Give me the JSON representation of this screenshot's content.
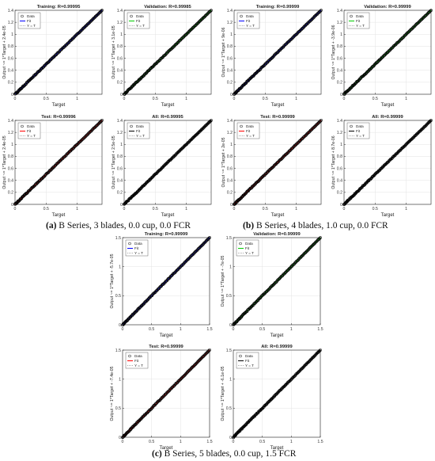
{
  "legend_labels": {
    "data": "Data",
    "fit": "Fit",
    "yt": "Y = T"
  },
  "xlabel": "Target",
  "colors": {
    "training": "#0000ff",
    "validation": "#00cc00",
    "test": "#ff0000",
    "all": "#000000",
    "axes": "#262626",
    "markers": "#000000"
  },
  "captions": [
    {
      "letter": "(a)",
      "text": " B Series, 3 blades, 0.0 cup, 0.0 FCR"
    },
    {
      "letter": "(b)",
      "text": " B Series, 4 blades, 1.0 cup, 0.0 FCR"
    },
    {
      "letter": "(c)",
      "text": " B Series, 5 blades, 0.0 cup, 1.5 FCR"
    }
  ],
  "chart_data": [
    {
      "type": "scatter",
      "group": "a",
      "subset": "training",
      "title": "Training: R=0.99995",
      "ylabel": "Output ~= 1*Target + 2.4e-05",
      "xlabel": "Target",
      "xlim": [
        0,
        1.4
      ],
      "ylim": [
        0,
        1.4
      ],
      "xticks": [
        "0",
        "0.5",
        "1"
      ],
      "yticks": [
        "0",
        "0.2",
        "0.4",
        "0.6",
        "0.8",
        "1",
        "1.2",
        "1.4"
      ],
      "data_range": [
        0,
        1.4
      ],
      "fit": {
        "slope": 1,
        "intercept": 2.4e-05
      }
    },
    {
      "type": "scatter",
      "group": "a",
      "subset": "validation",
      "title": "Validation: R=0.99985",
      "ylabel": "Output ~= 1*Target + 3.1e-05",
      "xlabel": "Target",
      "xlim": [
        0,
        1.4
      ],
      "ylim": [
        0,
        1.4
      ],
      "xticks": [
        "0",
        "0.5",
        "1"
      ],
      "yticks": [
        "0",
        "0.2",
        "0.4",
        "0.6",
        "0.8",
        "1",
        "1.2",
        "1.4"
      ],
      "data_range": [
        0,
        1.4
      ],
      "fit": {
        "slope": 1,
        "intercept": 3.1e-05
      }
    },
    {
      "type": "scatter",
      "group": "a",
      "subset": "test",
      "title": "Test: R=0.99996",
      "ylabel": "Output ~= 1*Target + 2.4e-05",
      "xlabel": "Target",
      "xlim": [
        0,
        1.4
      ],
      "ylim": [
        0,
        1.4
      ],
      "xticks": [
        "0",
        "0.5",
        "1"
      ],
      "yticks": [
        "0",
        "0.2",
        "0.4",
        "0.6",
        "0.8",
        "1",
        "1.2",
        "1.4"
      ],
      "data_range": [
        0,
        1.4
      ],
      "fit": {
        "slope": 1,
        "intercept": 2.4e-05
      }
    },
    {
      "type": "scatter",
      "group": "a",
      "subset": "all",
      "title": "All: R=0.99995",
      "ylabel": "Output ~= 1*Target + 2.5e-05",
      "xlabel": "Target",
      "xlim": [
        0,
        1.4
      ],
      "ylim": [
        0,
        1.4
      ],
      "xticks": [
        "0",
        "0.5",
        "1"
      ],
      "yticks": [
        "0",
        "0.2",
        "0.4",
        "0.6",
        "0.8",
        "1",
        "1.2",
        "1.4"
      ],
      "data_range": [
        0,
        1.4
      ],
      "fit": {
        "slope": 1,
        "intercept": 2.5e-05
      }
    },
    {
      "type": "scatter",
      "group": "b",
      "subset": "training",
      "title": "Training: R=0.99999",
      "ylabel": "Output ~= 1*Target + 9e-06",
      "xlabel": "Target",
      "xlim": [
        0,
        1.4
      ],
      "ylim": [
        0,
        1.4
      ],
      "xticks": [
        "0",
        "0.5",
        "1"
      ],
      "yticks": [
        "0",
        "0.2",
        "0.4",
        "0.6",
        "0.8",
        "1",
        "1.2",
        "1.4"
      ],
      "data_range": [
        0,
        1.4
      ],
      "fit": {
        "slope": 1,
        "intercept": 9e-06
      }
    },
    {
      "type": "scatter",
      "group": "b",
      "subset": "validation",
      "title": "Validation: R=0.99999",
      "ylabel": "Output ~= 1*Target + -3.9e-06",
      "xlabel": "Target",
      "xlim": [
        0,
        1.4
      ],
      "ylim": [
        0,
        1.4
      ],
      "xticks": [
        "0",
        "0.5",
        "1"
      ],
      "yticks": [
        "0",
        "0.2",
        "0.4",
        "0.6",
        "0.8",
        "1",
        "1.2",
        "1.4"
      ],
      "data_range": [
        0,
        1.4
      ],
      "fit": {
        "slope": 1,
        "intercept": -3.9e-06
      }
    },
    {
      "type": "scatter",
      "group": "b",
      "subset": "test",
      "title": "Test: R=0.99999",
      "ylabel": "Output ~= 1*Target + 2e-05",
      "xlabel": "Target",
      "xlim": [
        0,
        1.4
      ],
      "ylim": [
        0,
        1.4
      ],
      "xticks": [
        "0",
        "0.5",
        "1"
      ],
      "yticks": [
        "0",
        "0.2",
        "0.4",
        "0.6",
        "0.8",
        "1",
        "1.2",
        "1.4"
      ],
      "data_range": [
        0,
        1.4
      ],
      "fit": {
        "slope": 1,
        "intercept": 2e-05
      }
    },
    {
      "type": "scatter",
      "group": "b",
      "subset": "all",
      "title": "All: R=0.99999",
      "ylabel": "Output ~= 1*Target + 8.7e-06",
      "xlabel": "Target",
      "xlim": [
        0,
        1.4
      ],
      "ylim": [
        0,
        1.4
      ],
      "xticks": [
        "0",
        "0.5",
        "1"
      ],
      "yticks": [
        "0",
        "0.2",
        "0.4",
        "0.6",
        "0.8",
        "1",
        "1.2",
        "1.4"
      ],
      "data_range": [
        0,
        1.4
      ],
      "fit": {
        "slope": 1,
        "intercept": 8.7e-06
      }
    },
    {
      "type": "scatter",
      "group": "c",
      "subset": "training",
      "title": "Training: R=0.99999",
      "ylabel": "Output ~= 1*Target + -5.7e-05",
      "xlabel": "Target",
      "xlim": [
        0,
        1.5
      ],
      "ylim": [
        0,
        1.5
      ],
      "xticks": [
        "0",
        "0.5",
        "1",
        "1.5"
      ],
      "yticks": [
        "0",
        "0.5",
        "1",
        "1.5"
      ],
      "data_range": [
        0,
        1.5
      ],
      "fit": {
        "slope": 1,
        "intercept": -5.7e-05
      }
    },
    {
      "type": "scatter",
      "group": "c",
      "subset": "validation",
      "title": "Validation: R=0.99999",
      "ylabel": "Output ~= 1*Target + -7e-05",
      "xlabel": "Target",
      "xlim": [
        0,
        1.5
      ],
      "ylim": [
        0,
        1.5
      ],
      "xticks": [
        "0",
        "0.5",
        "1",
        "1.5"
      ],
      "yticks": [
        "0",
        "0.5",
        "1",
        "1.5"
      ],
      "data_range": [
        0,
        1.5
      ],
      "fit": {
        "slope": 1,
        "intercept": -7e-05
      }
    },
    {
      "type": "scatter",
      "group": "c",
      "subset": "test",
      "title": "Test: R=0.99999",
      "ylabel": "Output ~= 1*Target + -7.4e-05",
      "xlabel": "Target",
      "xlim": [
        0,
        1.5
      ],
      "ylim": [
        0,
        1.5
      ],
      "xticks": [
        "0",
        "0.5",
        "1",
        "1.5"
      ],
      "yticks": [
        "0",
        "0.5",
        "1",
        "1.5"
      ],
      "data_range": [
        0,
        1.5
      ],
      "fit": {
        "slope": 1,
        "intercept": -7.4e-05
      }
    },
    {
      "type": "scatter",
      "group": "c",
      "subset": "all",
      "title": "All: R=0.99999",
      "ylabel": "Output ~= 1*Target + -6.1e-05",
      "xlabel": "Target",
      "xlim": [
        0,
        1.5
      ],
      "ylim": [
        0,
        1.5
      ],
      "xticks": [
        "0",
        "0.5",
        "1",
        "1.5"
      ],
      "yticks": [
        "0",
        "0.5",
        "1",
        "1.5"
      ],
      "data_range": [
        0,
        1.5
      ],
      "fit": {
        "slope": 1,
        "intercept": -6.1e-05
      }
    }
  ]
}
